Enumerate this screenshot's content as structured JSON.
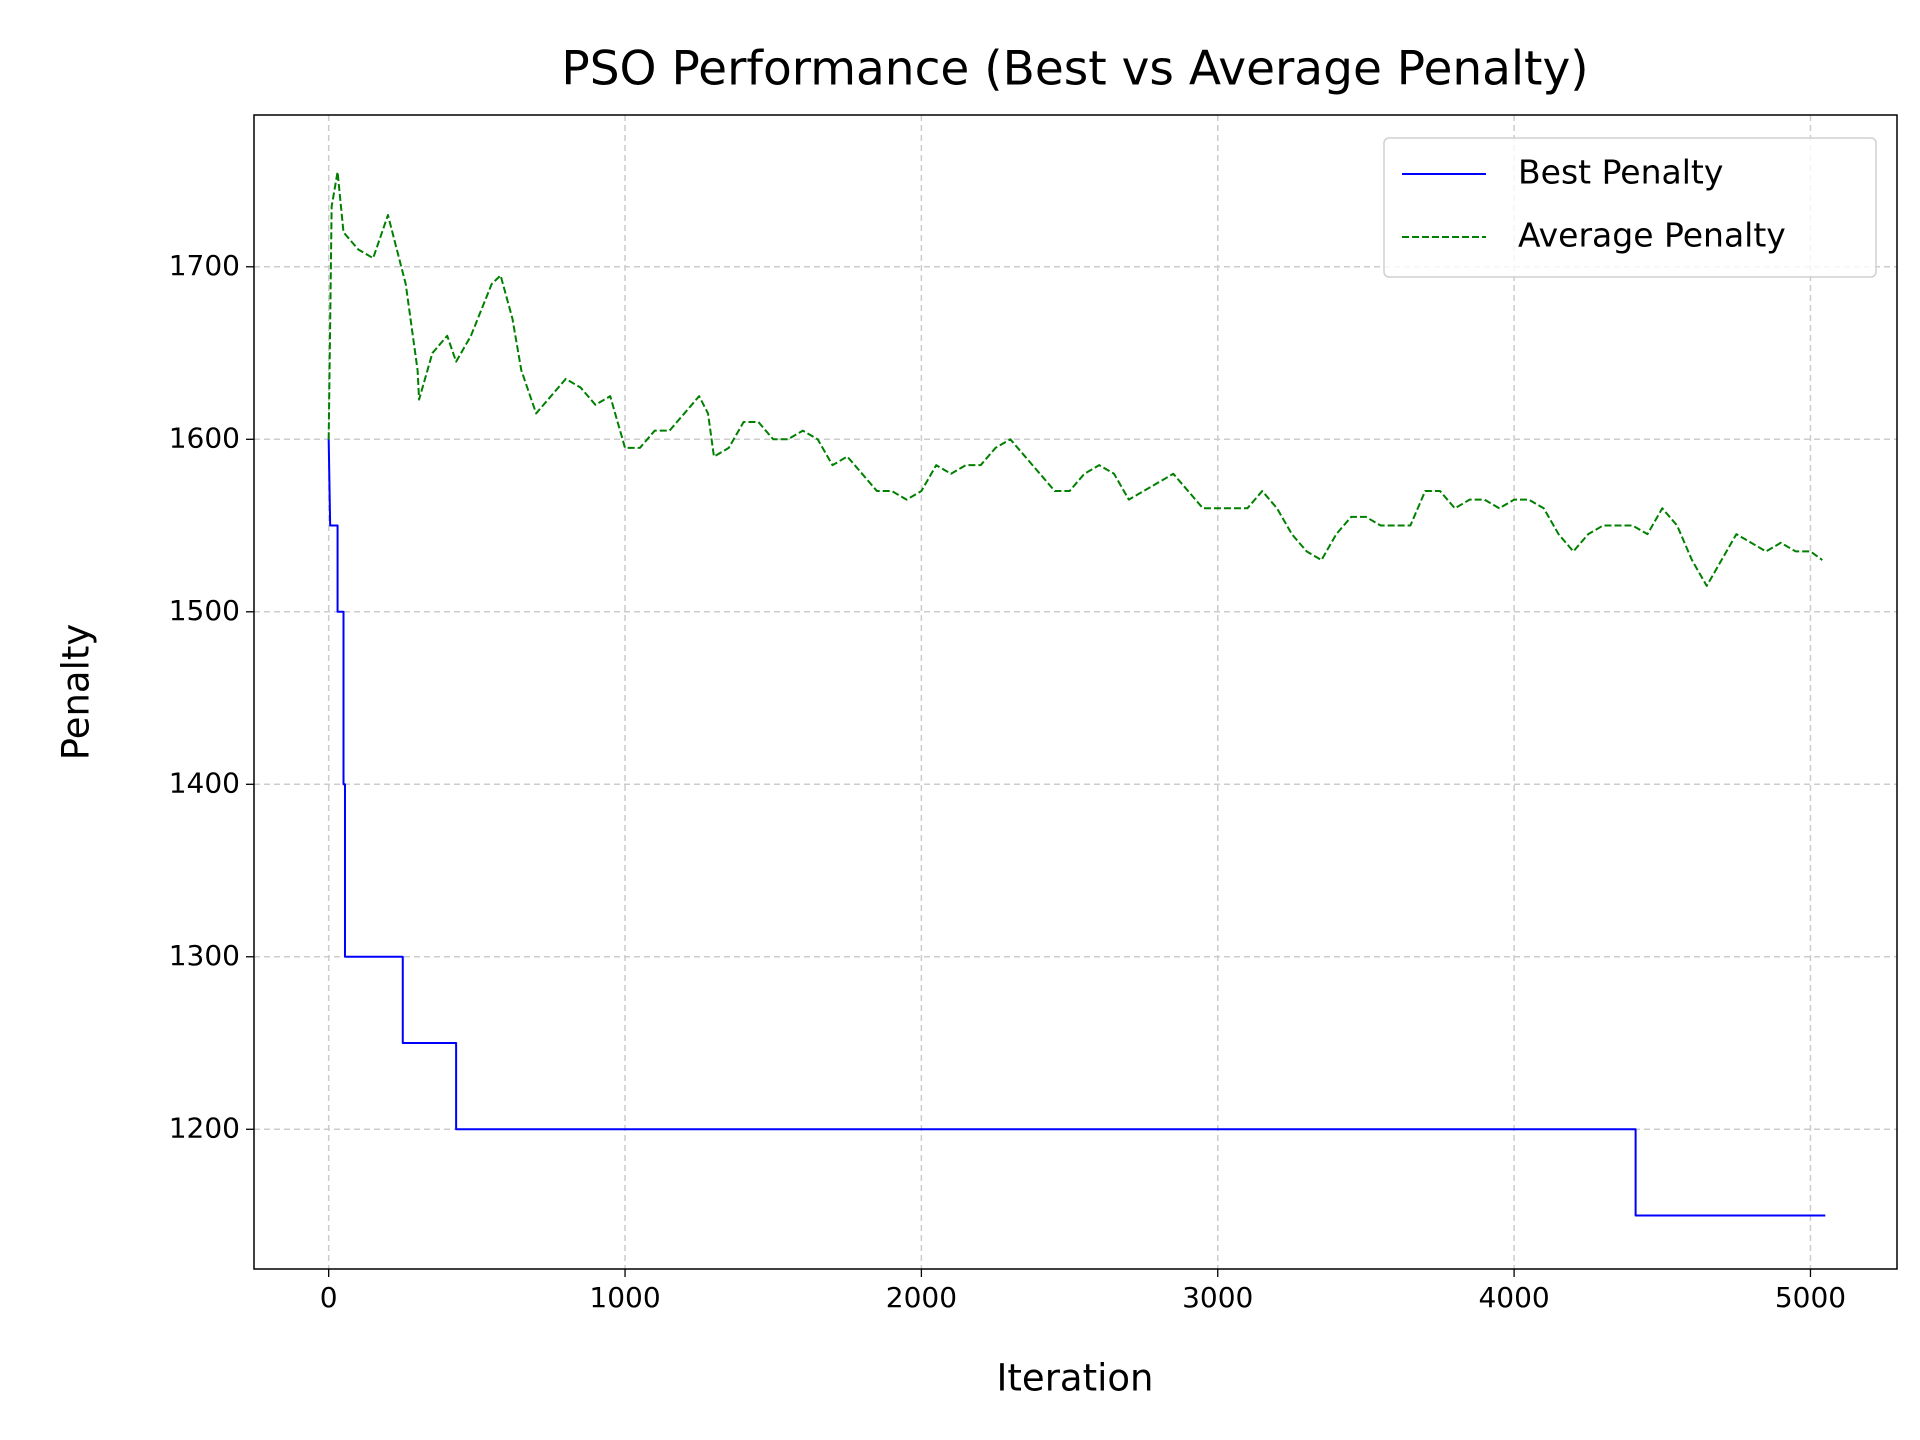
{
  "chart_data": {
    "type": "line",
    "title": "PSO Performance (Best vs Average Penalty)",
    "x_label": "Iteration",
    "y_label": "Penalty",
    "xlim": [
      -252,
      5292
    ],
    "ylim": [
      1119,
      1788
    ],
    "xticks": [
      0,
      1000,
      2000,
      3000,
      4000,
      5000
    ],
    "yticks": [
      1200,
      1300,
      1400,
      1500,
      1600,
      1700
    ],
    "grid": true,
    "legend_position": "upper right",
    "series": [
      {
        "name": "Best Penalty",
        "color": "#0000ff",
        "style": "solid",
        "x": [
          0,
          5,
          30,
          30,
          50,
          50,
          55,
          55,
          60,
          60,
          250,
          250,
          430,
          430,
          4410,
          4410,
          5050
        ],
        "values": [
          1600,
          1550,
          1550,
          1500,
          1500,
          1400,
          1400,
          1300,
          1300,
          1300,
          1300,
          1250,
          1250,
          1200,
          1200,
          1150,
          1150
        ]
      },
      {
        "name": "Average Penalty",
        "color": "#008000",
        "style": "dashed",
        "x": [
          0,
          10,
          30,
          50,
          100,
          150,
          200,
          230,
          260,
          300,
          305,
          350,
          400,
          430,
          480,
          550,
          580,
          620,
          650,
          700,
          750,
          800,
          850,
          900,
          950,
          1000,
          1050,
          1100,
          1150,
          1200,
          1250,
          1280,
          1300,
          1350,
          1400,
          1450,
          1500,
          1550,
          1600,
          1650,
          1700,
          1750,
          1800,
          1850,
          1900,
          1950,
          2000,
          2050,
          2100,
          2150,
          2200,
          2250,
          2300,
          2350,
          2400,
          2450,
          2500,
          2550,
          2600,
          2650,
          2700,
          2750,
          2800,
          2850,
          2900,
          2950,
          3000,
          3050,
          3100,
          3150,
          3200,
          3250,
          3300,
          3350,
          3400,
          3450,
          3500,
          3550,
          3600,
          3650,
          3700,
          3750,
          3800,
          3850,
          3900,
          3950,
          4000,
          4050,
          4100,
          4150,
          4200,
          4250,
          4300,
          4350,
          4400,
          4450,
          4500,
          4550,
          4600,
          4650,
          4700,
          4750,
          4800,
          4850,
          4900,
          4950,
          5000,
          5040
        ],
        "values": [
          1600,
          1735,
          1755,
          1720,
          1710,
          1705,
          1730,
          1710,
          1690,
          1640,
          1623,
          1650,
          1660,
          1645,
          1660,
          1690,
          1695,
          1670,
          1640,
          1615,
          1625,
          1635,
          1630,
          1620,
          1625,
          1595,
          1595,
          1605,
          1605,
          1615,
          1625,
          1615,
          1590,
          1595,
          1610,
          1610,
          1600,
          1600,
          1605,
          1600,
          1585,
          1590,
          1580,
          1570,
          1570,
          1565,
          1570,
          1585,
          1580,
          1585,
          1585,
          1595,
          1600,
          1590,
          1580,
          1570,
          1570,
          1580,
          1585,
          1580,
          1565,
          1570,
          1575,
          1580,
          1570,
          1560,
          1560,
          1560,
          1560,
          1570,
          1560,
          1545,
          1535,
          1530,
          1545,
          1555,
          1555,
          1550,
          1550,
          1550,
          1570,
          1570,
          1560,
          1565,
          1565,
          1560,
          1565,
          1565,
          1560,
          1545,
          1535,
          1545,
          1550,
          1550,
          1550,
          1545,
          1560,
          1550,
          1530,
          1515,
          1530,
          1545,
          1540,
          1535,
          1540,
          1535,
          1535,
          1530
        ]
      }
    ]
  }
}
